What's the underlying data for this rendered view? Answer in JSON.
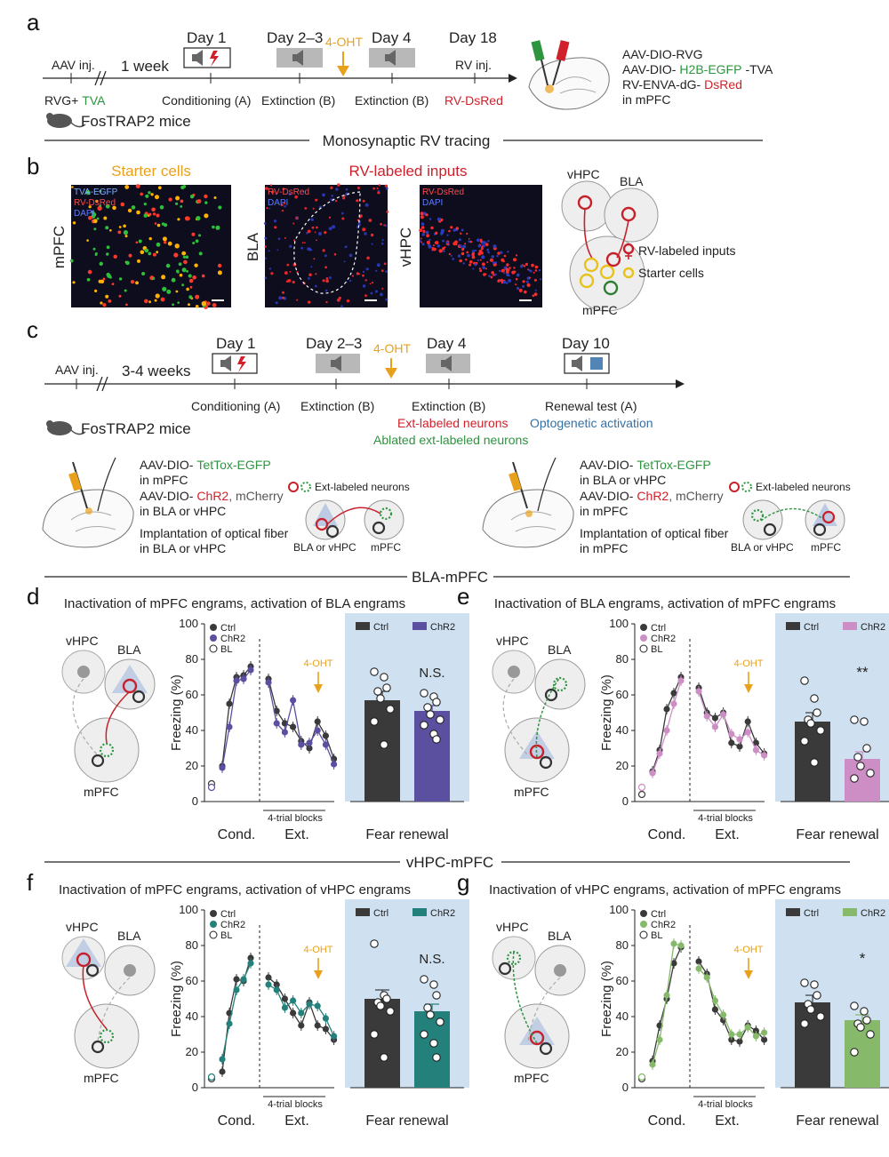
{
  "colors": {
    "green": "#2e9440",
    "red": "#d0202a",
    "orange": "#e8a11c",
    "blue": "#3370a8",
    "ctrl": "#3a3a3a",
    "bla_chr2": "#5b4fa0",
    "mpfc_chr2_pink": "#cc8ec4",
    "vhpc_chr2_teal": "#23807a",
    "mpfc_chr2_green": "#86b96a",
    "panel_bg": "#cfe0f0"
  },
  "panel_a": {
    "letter": "a",
    "aav_inj": "AAV inj.",
    "one_week": "1 week",
    "rvg_plus": "RVG+",
    "tva": "TVA",
    "day1": "Day 1",
    "day23": "Day 2–3",
    "ohtlabel": "4-OHT",
    "day4": "Day 4",
    "day18": "Day 18",
    "rv_inj": "RV inj.",
    "conditioning": "Conditioning (A)",
    "extinction1": "Extinction (B)",
    "extinction2": "Extinction (B)",
    "rv_dsred": "RV-DsRed",
    "mice": "FosTRAP2 mice",
    "virus1": "AAV-DIO-RVG",
    "virus2a": "AAV-DIO-",
    "virus2b": "H2B-EGFP",
    "virus2c": "-TVA",
    "virus3a": "RV-ENVA-dG-",
    "virus3b": "DsRed",
    "virus4": "in mPFC",
    "section": "Monosynaptic RV tracing"
  },
  "panel_b": {
    "letter": "b",
    "starter_title": "Starter cells",
    "inputs_title": "RV-labeled inputs",
    "img1_l1": "TVA-EGFP",
    "img1_l2": "RV-DsRed",
    "img1_l3": "DAPI",
    "img2_l1": "RV-DsRed",
    "img2_l2": "DAPI",
    "img3_l1": "RV-DsRed",
    "img3_l2": "DAPI",
    "region_mpfc": "mPFC",
    "region_bla": "BLA",
    "region_vhpc": "vHPC",
    "diag_vhpc": "vHPC",
    "diag_bla": "BLA",
    "diag_mpfc": "mPFC",
    "legend_inputs": "RV-labeled inputs",
    "legend_starter": "Starter cells"
  },
  "panel_c": {
    "letter": "c",
    "aav_inj": "AAV inj.",
    "weeks": "3-4 weeks",
    "day1": "Day 1",
    "day23": "Day 2–3",
    "oht": "4-OHT",
    "day4": "Day 4",
    "day10": "Day 10",
    "conditioning": "Conditioning (A)",
    "extinction1": "Extinction (B)",
    "extinction2": "Extinction (B)",
    "ext_labeled": "Ext-labeled neurons",
    "ablated": "Ablated ext-labeled neurons",
    "renewal": "Renewal test (A)",
    "opto": "Optogenetic activation",
    "mice": "FosTRAP2 mice",
    "left_l1a": "AAV-DIO-",
    "left_l1b": "TetTox-EGFP",
    "left_l2": "in mPFC",
    "left_l3a": "AAV-DIO-",
    "left_l3b": "ChR2",
    "left_l3c": ", mCherry",
    "left_l4": "in BLA or vHPC",
    "left_l5": "Implantation of optical fiber",
    "left_l6": "in BLA or vHPC",
    "left_legend": "Ext-labeled neurons",
    "left_src": "BLA or vHPC",
    "left_dst": "mPFC",
    "right_l1a": "AAV-DIO-",
    "right_l1b": "TetTox-EGFP",
    "right_l2": "in BLA or vHPC",
    "right_l3a": "AAV-DIO-",
    "right_l3b": "ChR2",
    "right_l3c": ", mCherry",
    "right_l4": "in mPFC",
    "right_l5": "Implantation of optical fiber",
    "right_l6": "in mPFC",
    "right_legend": "Ext-labeled neurons",
    "right_src": "BLA or vHPC",
    "right_dst": "mPFC"
  },
  "section_bla": "BLA-mPFC",
  "section_vhpc": "vHPC-mPFC",
  "panels": [
    {
      "letter": "d",
      "title": "Inactivation of mPFC engrams, activation of BLA engrams",
      "diagram": {
        "top_left": "vHPC",
        "top_right": "BLA",
        "bottom": "mPFC",
        "active": "BLA",
        "silenced": "mPFC"
      },
      "legend": [
        "Ctrl",
        "ChR2",
        "BL"
      ],
      "ylabel": "Freezing (%)",
      "yticks": [
        "0",
        "20",
        "40",
        "60",
        "80",
        "100"
      ],
      "cond_label": "Cond.",
      "ext_label": "Ext.",
      "blocks_label": "4-trial blocks",
      "oht": "4-OHT",
      "bar_legend": [
        "Ctrl",
        "ChR2"
      ],
      "sig": "N.S.",
      "renewal": "Fear renewal",
      "chr2_color_key": "bla_chr2",
      "chart_data": {
        "type": "line",
        "ylabel": "Freezing (%)",
        "ylim": [
          0,
          100
        ],
        "baseline": {
          "Ctrl": 10,
          "ChR2": 8
        },
        "series": [
          {
            "name": "Ctrl",
            "cond": [
              20,
              55,
              70,
              71,
              76
            ],
            "ext": [
              69,
              51,
              44,
              42,
              34,
              30,
              45,
              37,
              24
            ]
          },
          {
            "name": "ChR2",
            "cond": [
              19,
              42,
              68,
              69,
              74
            ],
            "ext": [
              67,
              44,
              39,
              57,
              32,
              33,
              40,
              32,
              21
            ]
          }
        ],
        "bars": {
          "Ctrl": 57,
          "ChR2": 51
        },
        "bar_err": {
          "Ctrl": 5,
          "ChR2": 3
        },
        "points": {
          "Ctrl": [
            73,
            70,
            64,
            62,
            58,
            52,
            45,
            32
          ],
          "ChR2": [
            61,
            59,
            56,
            53,
            49,
            46,
            43,
            38,
            35
          ]
        }
      }
    },
    {
      "letter": "e",
      "title": "Inactivation of BLA engrams, activation of mPFC engrams",
      "diagram": {
        "top_left": "vHPC",
        "top_right": "BLA",
        "bottom": "mPFC",
        "active": "mPFC",
        "silenced": "BLA"
      },
      "legend": [
        "Ctrl",
        "ChR2",
        "BL"
      ],
      "ylabel": "Freezing (%)",
      "yticks": [
        "0",
        "20",
        "40",
        "60",
        "80",
        "100"
      ],
      "cond_label": "Cond.",
      "ext_label": "Ext.",
      "blocks_label": "4-trial blocks",
      "oht": "4-OHT",
      "bar_legend": [
        "Ctrl",
        "ChR2"
      ],
      "sig": "**",
      "renewal": "Fear renewal",
      "chr2_color_key": "mpfc_chr2_pink",
      "chart_data": {
        "type": "line",
        "ylabel": "Freezing (%)",
        "ylim": [
          0,
          100
        ],
        "baseline": {
          "Ctrl": 4,
          "ChR2": 8
        },
        "series": [
          {
            "name": "Ctrl",
            "cond": [
              17,
              29,
              52,
              61,
              70
            ],
            "ext": [
              64,
              50,
              47,
              50,
              33,
              31,
              45,
              33,
              27
            ]
          },
          {
            "name": "ChR2",
            "cond": [
              16,
              27,
              40,
              55,
              68
            ],
            "ext": [
              62,
              48,
              42,
              49,
              38,
              35,
              39,
              29,
              26
            ]
          }
        ],
        "bars": {
          "Ctrl": 45,
          "ChR2": 24
        },
        "bar_err": {
          "Ctrl": 5,
          "ChR2": 4
        },
        "points": {
          "Ctrl": [
            68,
            58,
            50,
            46,
            44,
            40,
            34,
            22
          ],
          "ChR2": [
            46,
            45,
            30,
            25,
            20,
            16,
            13
          ]
        }
      }
    },
    {
      "letter": "f",
      "title": "Inactivation of mPFC engrams, activation of vHPC engrams",
      "diagram": {
        "top_left": "vHPC",
        "top_right": "BLA",
        "bottom": "mPFC",
        "active": "vHPC",
        "silenced": "mPFC"
      },
      "legend": [
        "Ctrl",
        "ChR2",
        "BL"
      ],
      "ylabel": "Freezing (%)",
      "yticks": [
        "0",
        "20",
        "40",
        "60",
        "80",
        "100"
      ],
      "cond_label": "Cond.",
      "ext_label": "Ext.",
      "blocks_label": "4-trial blocks",
      "oht": "4-OHT",
      "bar_legend": [
        "Ctrl",
        "ChR2"
      ],
      "sig": "N.S.",
      "renewal": "Fear renewal",
      "chr2_color_key": "vhpc_chr2_teal",
      "chart_data": {
        "type": "line",
        "ylabel": "Freezing (%)",
        "ylim": [
          0,
          100
        ],
        "baseline": {
          "Ctrl": 5,
          "ChR2": 6
        },
        "series": [
          {
            "name": "Ctrl",
            "cond": [
              9,
              42,
              61,
              60,
              73
            ],
            "ext": [
              62,
              58,
              50,
              42,
              35,
              48,
              35,
              33,
              27
            ]
          },
          {
            "name": "ChR2",
            "cond": [
              16,
              36,
              55,
              61,
              70
            ],
            "ext": [
              58,
              55,
              45,
              49,
              42,
              47,
              46,
              39,
              29
            ]
          }
        ],
        "bars": {
          "Ctrl": 50,
          "ChR2": 43
        },
        "bar_err": {
          "Ctrl": 5,
          "ChR2": 4
        },
        "points": {
          "Ctrl": [
            81,
            52,
            50,
            48,
            46,
            43,
            30,
            17
          ],
          "ChR2": [
            61,
            58,
            52,
            45,
            41,
            37,
            30,
            25,
            17
          ]
        }
      }
    },
    {
      "letter": "g",
      "title": "Inactivation of vHPC engrams, activation of mPFC engrams",
      "diagram": {
        "top_left": "vHPC",
        "top_right": "BLA",
        "bottom": "mPFC",
        "active": "mPFC",
        "silenced": "vHPC"
      },
      "legend": [
        "Ctrl",
        "ChR2",
        "BL"
      ],
      "ylabel": "Freezing (%)",
      "yticks": [
        "0",
        "20",
        "40",
        "60",
        "80",
        "100"
      ],
      "cond_label": "Cond.",
      "ext_label": "Ext.",
      "blocks_label": "4-trial blocks",
      "oht": "4-OHT",
      "bar_legend": [
        "Ctrl",
        "ChR2"
      ],
      "sig": "*",
      "renewal": "Fear renewal",
      "chr2_color_key": "mpfc_chr2_green",
      "chart_data": {
        "type": "line",
        "ylabel": "Freezing (%)",
        "ylim": [
          0,
          100
        ],
        "baseline": {
          "Ctrl": 5,
          "ChR2": 6
        },
        "series": [
          {
            "name": "Ctrl",
            "cond": [
              15,
              35,
              50,
              70,
              79
            ],
            "ext": [
              71,
              64,
              44,
              38,
              27,
              26,
              35,
              32,
              27
            ]
          },
          {
            "name": "ChR2",
            "cond": [
              13,
              27,
              52,
              81,
              80
            ],
            "ext": [
              67,
              62,
              49,
              41,
              30,
              30,
              34,
              29,
              31
            ]
          }
        ],
        "bars": {
          "Ctrl": 48,
          "ChR2": 38
        },
        "bar_err": {
          "Ctrl": 4,
          "ChR2": 3
        },
        "points": {
          "Ctrl": [
            59,
            58,
            52,
            47,
            44,
            40,
            36
          ],
          "ChR2": [
            46,
            43,
            38,
            36,
            34,
            30,
            20
          ]
        }
      }
    }
  ]
}
